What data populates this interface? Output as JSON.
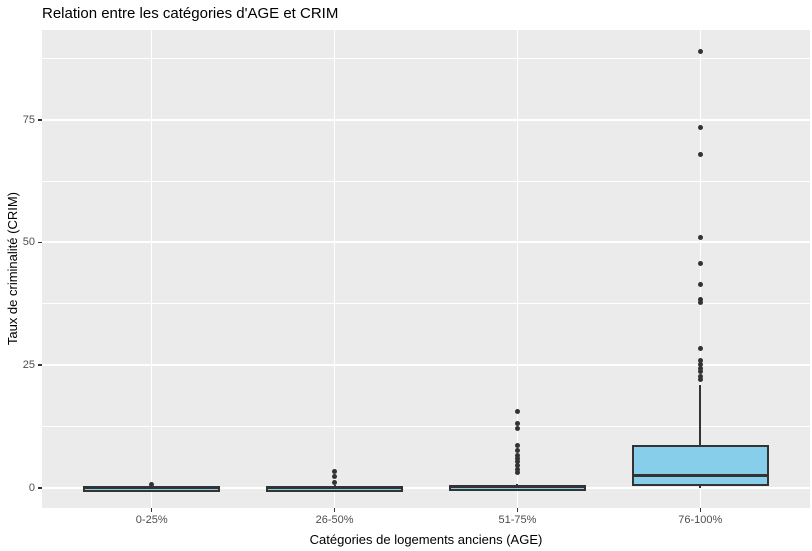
{
  "title": "Relation entre les catégories d'AGE et CRIM",
  "chart_data": {
    "type": "boxplot",
    "title": "Relation entre les catégories d'AGE et CRIM",
    "xlabel": "Catégories de logements anciens (AGE)",
    "ylabel": "Taux de criminalité (CRIM)",
    "categories": [
      "0-25%",
      "26-50%",
      "51-75%",
      "76-100%"
    ],
    "y_ticks": [
      0,
      25,
      50,
      75
    ],
    "y_tick_labels": [
      "0",
      "25",
      "50",
      "75"
    ],
    "y_minor_ticks": [
      12.5,
      37.5,
      62.5,
      87.5
    ],
    "ylim": [
      -4.1,
      93.3
    ],
    "grid": "on",
    "legend": "none",
    "boxes": [
      {
        "category": "0-25%",
        "min": 0.01,
        "q1": 0.03,
        "median": 0.06,
        "q3": 0.1,
        "max": 0.16,
        "outliers": [
          0.61
        ]
      },
      {
        "category": "26-50%",
        "min": 0.02,
        "q1": 0.06,
        "median": 0.12,
        "q3": 0.25,
        "max": 0.53,
        "outliers": [
          3.3,
          2.4,
          1.0
        ]
      },
      {
        "category": "51-75%",
        "min": 0.02,
        "q1": 0.09,
        "median": 0.21,
        "q3": 0.42,
        "max": 0.85,
        "outliers": [
          15.6,
          13.2,
          12.0,
          8.7,
          7.7,
          6.5,
          5.9,
          5.3,
          4.6,
          3.8,
          3.2
        ]
      },
      {
        "category": "76-100%",
        "min": 0.03,
        "q1": 0.35,
        "median": 2.5,
        "q3": 8.7,
        "max": 20.9,
        "outliers": [
          88.9,
          73.5,
          67.9,
          51.1,
          45.7,
          41.5,
          38.4,
          37.7,
          28.4,
          26.0,
          25.1,
          24.4,
          23.7,
          22.6,
          22.1
        ]
      }
    ],
    "colors": {
      "box_fill": "#87CEEB",
      "box_border": "#333333",
      "outlier": "#333333",
      "panel_bg": "#EBEBEB",
      "gridline": "#FFFFFF",
      "tick_label": "#4D4D4D",
      "title": "#000000"
    }
  }
}
